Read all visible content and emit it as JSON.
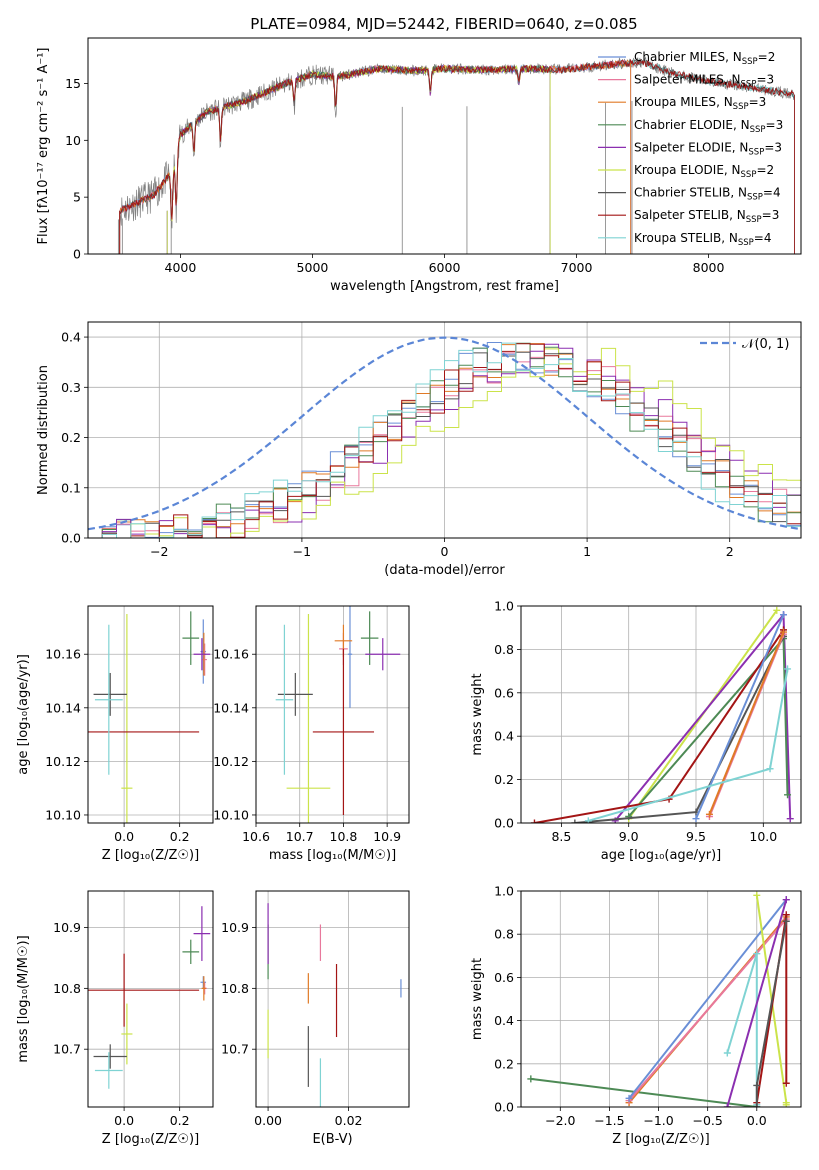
{
  "figure_title": "PLATE=0984, MJD=52442, FIBERID=0640, z=0.085",
  "colors": {
    "Chabrier MILES": "#6a8fd6",
    "Salpeter MILES": "#e8789c",
    "Kroupa MILES": "#e07a26",
    "Chabrier ELODIE": "#4d8a55",
    "Salpeter ELODIE": "#8b2fb0",
    "Kroupa ELODIE": "#cbe34a",
    "Chabrier STELIB": "#555555",
    "Salpeter STELIB": "#a31515",
    "Kroupa STELIB": "#7fd3d3"
  },
  "chart_data": [
    {
      "id": "spectrum",
      "type": "line",
      "title": "PLATE=0984, MJD=52442, FIBERID=0640, z=0.085",
      "xlabel": "wavelength [Angstrom, rest frame]",
      "ylabel": "Flux [fλ10⁻¹⁷ erg cm⁻² s⁻¹ A⁻¹]",
      "xlim": [
        3300,
        8700
      ],
      "ylim": [
        0,
        19
      ],
      "xticks": [
        4000,
        5000,
        6000,
        7000,
        8000
      ],
      "yticks": [
        0,
        5,
        10,
        15
      ],
      "grid": false,
      "legend_position": "top-right",
      "legend": [
        {
          "name": "Chabrier MILES",
          "nssp": "2"
        },
        {
          "name": "Salpeter MILES",
          "nssp": "3"
        },
        {
          "name": "Kroupa MILES",
          "nssp": "3"
        },
        {
          "name": "Chabrier ELODIE",
          "nssp": "3"
        },
        {
          "name": "Salpeter ELODIE",
          "nssp": "3"
        },
        {
          "name": "Kroupa ELODIE",
          "nssp": "2"
        },
        {
          "name": "Chabrier STELIB",
          "nssp": "4"
        },
        {
          "name": "Salpeter STELIB",
          "nssp": "3"
        },
        {
          "name": "Kroupa STELIB",
          "nssp": "4"
        }
      ],
      "continuum": [
        [
          3540,
          3.8
        ],
        [
          3800,
          5.2
        ],
        [
          3950,
          7.5
        ],
        [
          4000,
          10.5
        ],
        [
          4200,
          12.5
        ],
        [
          4500,
          13.5
        ],
        [
          4800,
          15.0
        ],
        [
          5000,
          15.8
        ],
        [
          5200,
          15.6
        ],
        [
          5500,
          16.3
        ],
        [
          5800,
          16.1
        ],
        [
          6000,
          16.3
        ],
        [
          6300,
          16.2
        ],
        [
          6600,
          16.3
        ],
        [
          6900,
          16.2
        ],
        [
          7200,
          16.6
        ],
        [
          7500,
          16.9
        ],
        [
          7700,
          16.0
        ],
        [
          8000,
          15.2
        ],
        [
          8400,
          14.5
        ],
        [
          8650,
          14.0
        ]
      ],
      "absorption_lines": [
        [
          3934,
          5.5
        ],
        [
          3969,
          5.5
        ],
        [
          4102,
          3.0
        ],
        [
          4304,
          3.5
        ],
        [
          4861,
          2.5
        ],
        [
          5175,
          3.5
        ],
        [
          5893,
          2.5
        ],
        [
          6563,
          1.5
        ]
      ],
      "data_spikes": [
        3530,
        3560,
        3930,
        5680,
        6170,
        6800,
        7220,
        7420
      ],
      "model_ranges": {
        "MILES": [
          3540,
          7410
        ],
        "ELODIE": [
          3900,
          6800
        ],
        "STELIB": [
          3540,
          8650
        ]
      }
    },
    {
      "id": "residuals",
      "type": "histogram",
      "xlabel": "(data-model)/error",
      "ylabel": "Normed distribution",
      "xlim": [
        -2.5,
        2.5
      ],
      "ylim": [
        0,
        0.43
      ],
      "xticks": [
        -2,
        -1,
        0,
        1,
        2
      ],
      "yticks": [
        0.0,
        0.1,
        0.2,
        0.3,
        0.4
      ],
      "grid": true,
      "legend_position": "top-right",
      "legend_label": "𝒩(0, 1)",
      "bin_width": 0.1,
      "shape": "gaussian",
      "mean": 0.55,
      "sigma": 0.95,
      "peak": 0.36,
      "noise": 0.035,
      "series_offsets": {
        "Chabrier MILES": -0.03,
        "Salpeter MILES": 0.12,
        "Kroupa MILES": 0.05,
        "Chabrier ELODIE": -0.05,
        "Salpeter ELODIE": 0.18,
        "Kroupa ELODIE": 0.32,
        "Chabrier STELIB": 0.02,
        "Salpeter STELIB": 0.06,
        "Kroupa STELIB": -0.08
      },
      "normal_curve": {
        "mean": 0,
        "sigma": 1
      }
    },
    {
      "id": "age-vs-z",
      "type": "errorbar",
      "xlabel": "Z [log₁₀(Z/Z☉)]",
      "ylabel": "age  [log₁₀(age/yr)]",
      "xlim": [
        -0.13,
        0.32
      ],
      "ylim": [
        10.097,
        10.178
      ],
      "xticks": [
        0.0,
        0.2
      ],
      "yticks": [
        10.1,
        10.12,
        10.14,
        10.16
      ],
      "grid": true,
      "points": [
        {
          "series": "Chabrier MILES",
          "x": 0.285,
          "y": 10.161,
          "xerr": 0.01,
          "yerr": 0.012
        },
        {
          "series": "Salpeter MILES",
          "x": 0.29,
          "y": 10.158,
          "xerr": 0.008,
          "yerr": 0.006
        },
        {
          "series": "Kroupa MILES",
          "x": 0.287,
          "y": 10.16,
          "xerr": 0.008,
          "yerr": 0.008
        },
        {
          "series": "Chabrier ELODIE",
          "x": 0.24,
          "y": 10.166,
          "xerr": 0.03,
          "yerr": 0.01
        },
        {
          "series": "Salpeter ELODIE",
          "x": 0.28,
          "y": 10.16,
          "xerr": 0.03,
          "yerr": 0.006
        },
        {
          "series": "Kroupa ELODIE",
          "x": 0.01,
          "y": 10.11,
          "xerr": 0.02,
          "yerr": 0.065
        },
        {
          "series": "Chabrier STELIB",
          "x": -0.05,
          "y": 10.145,
          "xerr": 0.06,
          "yerr": 0.008
        },
        {
          "series": "Salpeter STELIB",
          "x": 0.0,
          "y": 10.131,
          "xerr": 0.27,
          "yerr": 0.0
        },
        {
          "series": "Kroupa STELIB",
          "x": -0.055,
          "y": 10.143,
          "xerr": 0.05,
          "yerr": 0.028
        }
      ]
    },
    {
      "id": "age-vs-mass",
      "type": "errorbar",
      "xlabel": "mass [log₁₀(M/M☉)]",
      "ylabel": "",
      "xlim": [
        10.6,
        10.95
      ],
      "ylim": [
        10.097,
        10.178
      ],
      "xticks": [
        10.6,
        10.7,
        10.8,
        10.9
      ],
      "yticks": [
        10.1,
        10.12,
        10.14,
        10.16
      ],
      "grid": true,
      "points": [
        {
          "series": "Chabrier MILES",
          "x": 10.815,
          "y": 10.16,
          "xerr": 0.005,
          "yerr": 0.02
        },
        {
          "series": "Salpeter MILES",
          "x": 10.8,
          "y": 10.162,
          "xerr": 0.01,
          "yerr": 0.006
        },
        {
          "series": "Kroupa MILES",
          "x": 10.8,
          "y": 10.165,
          "xerr": 0.02,
          "yerr": 0.006
        },
        {
          "series": "Chabrier ELODIE",
          "x": 10.86,
          "y": 10.166,
          "xerr": 0.02,
          "yerr": 0.01
        },
        {
          "series": "Salpeter ELODIE",
          "x": 10.89,
          "y": 10.16,
          "xerr": 0.04,
          "yerr": 0.006
        },
        {
          "series": "Kroupa ELODIE",
          "x": 10.72,
          "y": 10.11,
          "xerr": 0.05,
          "yerr": 0.065
        },
        {
          "series": "Chabrier STELIB",
          "x": 10.69,
          "y": 10.145,
          "xerr": 0.04,
          "yerr": 0.008
        },
        {
          "series": "Salpeter STELIB",
          "x": 10.8,
          "y": 10.131,
          "xerr": 0.07,
          "yerr": 0.031
        },
        {
          "series": "Kroupa STELIB",
          "x": 10.665,
          "y": 10.143,
          "xerr": 0.02,
          "yerr": 0.028
        }
      ]
    },
    {
      "id": "weight-vs-age",
      "type": "line",
      "xlabel": "age  [log₁₀(age/yr)]",
      "ylabel": "mass weight",
      "xlim": [
        8.2,
        10.28
      ],
      "ylim": [
        0,
        1.0
      ],
      "xticks": [
        8.5,
        9.0,
        9.5,
        10.0
      ],
      "yticks": [
        0.0,
        0.2,
        0.4,
        0.6,
        0.8,
        1.0
      ],
      "grid": true,
      "series": [
        {
          "name": "Kroupa ELODIE",
          "x": [
            9.0,
            10.1
          ],
          "y": [
            0.02,
            0.98
          ]
        },
        {
          "name": "Salpeter ELODIE",
          "x": [
            8.9,
            10.15,
            10.2
          ],
          "y": [
            0.01,
            0.96,
            0.02
          ]
        },
        {
          "name": "Chabrier ELODIE",
          "x": [
            9.0,
            10.15,
            10.18
          ],
          "y": [
            0.03,
            0.85,
            0.13
          ]
        },
        {
          "name": "Salpeter STELIB",
          "x": [
            8.3,
            9.3,
            10.15
          ],
          "y": [
            0.0,
            0.11,
            0.89
          ]
        },
        {
          "name": "Chabrier STELIB",
          "x": [
            8.6,
            9.5,
            10.15
          ],
          "y": [
            0.0,
            0.05,
            0.86
          ]
        },
        {
          "name": "Chabrier MILES",
          "x": [
            9.5,
            10.15
          ],
          "y": [
            0.02,
            0.96
          ]
        },
        {
          "name": "Salpeter MILES",
          "x": [
            9.6,
            10.15
          ],
          "y": [
            0.03,
            0.87
          ]
        },
        {
          "name": "Kroupa MILES",
          "x": [
            9.6,
            10.15
          ],
          "y": [
            0.04,
            0.88
          ]
        },
        {
          "name": "Kroupa STELIB",
          "x": [
            8.7,
            10.05,
            10.18
          ],
          "y": [
            0.01,
            0.25,
            0.71
          ]
        }
      ]
    },
    {
      "id": "mass-vs-z",
      "type": "errorbar",
      "xlabel": "Z [log₁₀(Z/Z☉)]",
      "ylabel": "mass [log₁₀(M/M☉)]",
      "xlim": [
        -0.13,
        0.32
      ],
      "ylim": [
        10.605,
        10.96
      ],
      "xticks": [
        0.0,
        0.2
      ],
      "yticks": [
        10.7,
        10.8,
        10.9
      ],
      "grid": true,
      "points": [
        {
          "series": "Chabrier MILES",
          "x": 0.285,
          "y": 10.81,
          "xerr": 0.01,
          "yerr": 0.01
        },
        {
          "series": "Salpeter MILES",
          "x": 0.29,
          "y": 10.8,
          "xerr": 0.008,
          "yerr": 0.01
        },
        {
          "series": "Kroupa MILES",
          "x": 0.287,
          "y": 10.8,
          "xerr": 0.008,
          "yerr": 0.02
        },
        {
          "series": "Chabrier ELODIE",
          "x": 0.24,
          "y": 10.86,
          "xerr": 0.03,
          "yerr": 0.02
        },
        {
          "series": "Salpeter ELODIE",
          "x": 0.28,
          "y": 10.89,
          "xerr": 0.03,
          "yerr": 0.045
        },
        {
          "series": "Kroupa ELODIE",
          "x": 0.01,
          "y": 10.725,
          "xerr": 0.02,
          "yerr": 0.05
        },
        {
          "series": "Chabrier STELIB",
          "x": -0.05,
          "y": 10.688,
          "xerr": 0.06,
          "yerr": 0.02
        },
        {
          "series": "Salpeter STELIB",
          "x": 0.0,
          "y": 10.797,
          "xerr": 0.27,
          "yerr": 0.06
        },
        {
          "series": "Kroupa STELIB",
          "x": -0.055,
          "y": 10.665,
          "xerr": 0.05,
          "yerr": 0.03
        }
      ]
    },
    {
      "id": "mass-vs-ebv",
      "type": "errorbar",
      "xlabel": "E(B-V)",
      "ylabel": "",
      "xlim": [
        -0.003,
        0.035
      ],
      "ylim": [
        10.605,
        10.96
      ],
      "xticks": [
        0.0,
        0.02
      ],
      "yticks": [
        10.7,
        10.8,
        10.9
      ],
      "grid": true,
      "points": [
        {
          "series": "Chabrier MILES",
          "x": 0.033,
          "y": 10.8,
          "xerr": 0.0,
          "yerr": 0.015
        },
        {
          "series": "Salpeter MILES",
          "x": 0.013,
          "y": 10.875,
          "xerr": 0.0,
          "yerr": 0.03
        },
        {
          "series": "Kroupa MILES",
          "x": 0.01,
          "y": 10.8,
          "xerr": 0.0,
          "yerr": 0.025
        },
        {
          "series": "Chabrier ELODIE",
          "x": 0.0,
          "y": 10.86,
          "xerr": 0.0,
          "yerr": 0.045
        },
        {
          "series": "Salpeter ELODIE",
          "x": 0.0,
          "y": 10.89,
          "xerr": 0.0,
          "yerr": 0.05
        },
        {
          "series": "Kroupa ELODIE",
          "x": 0.0,
          "y": 10.725,
          "xerr": 0.0,
          "yerr": 0.04
        },
        {
          "series": "Chabrier STELIB",
          "x": 0.01,
          "y": 10.688,
          "xerr": 0.0,
          "yerr": 0.05
        },
        {
          "series": "Salpeter STELIB",
          "x": 0.017,
          "y": 10.78,
          "xerr": 0.0,
          "yerr": 0.06
        },
        {
          "series": "Kroupa STELIB",
          "x": 0.013,
          "y": 10.64,
          "xerr": 0.0,
          "yerr": 0.045
        }
      ]
    },
    {
      "id": "weight-vs-z",
      "type": "line",
      "xlabel": "Z [log₁₀(Z/Z☉)]",
      "ylabel": "mass weight",
      "xlim": [
        -2.4,
        0.45
      ],
      "ylim": [
        0,
        1.0
      ],
      "xticks": [
        -2.0,
        -1.5,
        -1.0,
        -0.5,
        0.0
      ],
      "yticks": [
        0.0,
        0.2,
        0.4,
        0.6,
        0.8,
        1.0
      ],
      "grid": true,
      "series": [
        {
          "name": "Chabrier ELODIE",
          "x": [
            -2.3,
            0.0
          ],
          "y": [
            0.13,
            0.0
          ]
        },
        {
          "name": "Kroupa MILES",
          "x": [
            -1.3,
            0.3
          ],
          "y": [
            0.02,
            0.88
          ]
        },
        {
          "name": "Salpeter MILES",
          "x": [
            -1.3,
            0.3
          ],
          "y": [
            0.03,
            0.87
          ]
        },
        {
          "name": "Chabrier MILES",
          "x": [
            -1.3,
            0.3
          ],
          "y": [
            0.04,
            0.96
          ]
        },
        {
          "name": "Kroupa STELIB",
          "x": [
            -0.3,
            0.0,
            0.0
          ],
          "y": [
            0.25,
            0.71,
            0.01
          ]
        },
        {
          "name": "Kroupa ELODIE",
          "x": [
            0.0,
            0.3,
            0.3
          ],
          "y": [
            0.98,
            0.02,
            0.01
          ]
        },
        {
          "name": "Salpeter ELODIE",
          "x": [
            -0.3,
            0.3
          ],
          "y": [
            0.0,
            0.96
          ]
        },
        {
          "name": "Salpeter STELIB",
          "x": [
            0.0,
            0.3,
            0.3
          ],
          "y": [
            0.02,
            0.89,
            0.11
          ]
        },
        {
          "name": "Chabrier STELIB",
          "x": [
            0.0,
            0.0,
            0.3
          ],
          "y": [
            0.0,
            0.1,
            0.86
          ]
        }
      ]
    }
  ]
}
